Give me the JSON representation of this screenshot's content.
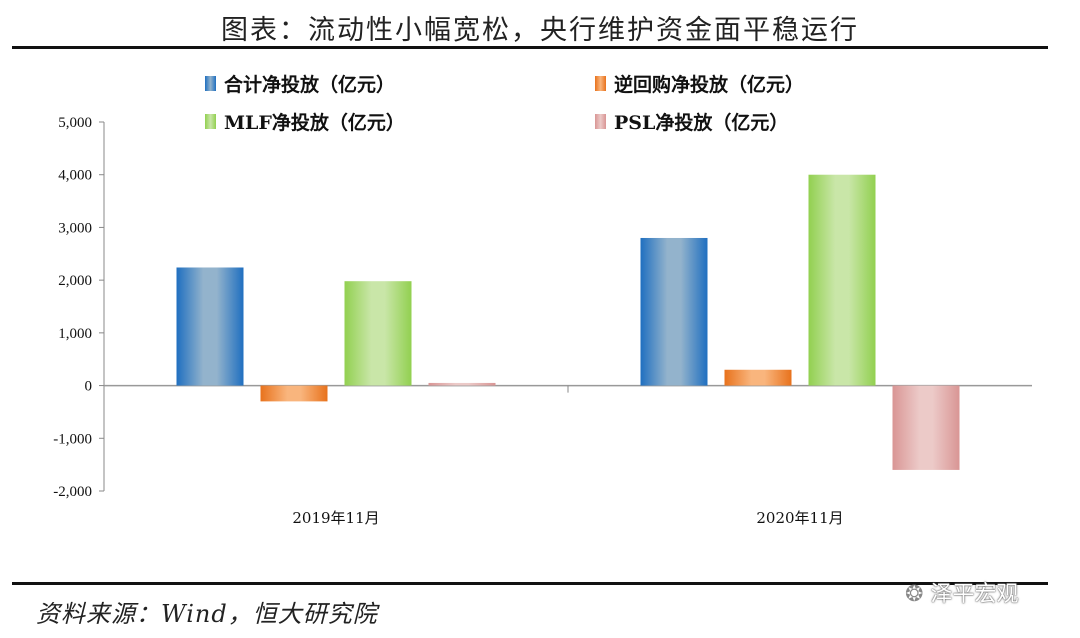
{
  "title": "图表：流动性小幅宽松，央行维护资金面平稳运行",
  "source": "资料来源：Wind，恒大研究院",
  "watermark": "泽平宏观",
  "chart_data": {
    "type": "bar",
    "categories": [
      "2019年11月",
      "2020年11月"
    ],
    "series": [
      {
        "name": "合计净投放（亿元）",
        "values": [
          2240,
          2800
        ],
        "color": "#1f6fc0"
      },
      {
        "name": "逆回购净投放（亿元）",
        "values": [
          -300,
          300
        ],
        "color": "#e8721c"
      },
      {
        "name": "MLF净投放（亿元）",
        "values": [
          1980,
          4000
        ],
        "color": "#92d050"
      },
      {
        "name": "PSL净投放（亿元）",
        "values": [
          50,
          -1600
        ],
        "color": "#d99594"
      }
    ],
    "ylim": [
      -2000,
      5000
    ],
    "yticks": [
      "5,000",
      "4,000",
      "3,000",
      "2,000",
      "1,000",
      "0",
      "-1,000",
      "-2,000"
    ],
    "ytick_values": [
      5000,
      4000,
      3000,
      2000,
      1000,
      0,
      -1000,
      -2000
    ],
    "grid": false,
    "legend": "top"
  }
}
